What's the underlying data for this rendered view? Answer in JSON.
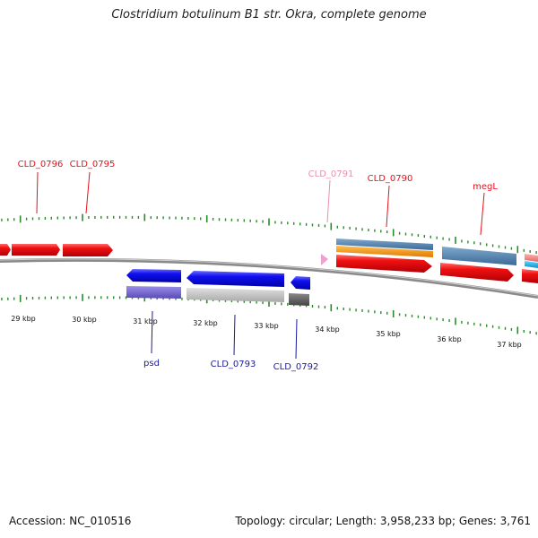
{
  "title": "Clostridium botulinum B1 str. Okra, complete genome",
  "footer": {
    "accession": "Accession: NC_010516",
    "info": "Topology: circular; Length: 3,958,233 bp; Genes: 3,761"
  },
  "colors": {
    "forward_gene": "#e8101a",
    "reverse_gene": "#0a10e8",
    "reverse_gene_label": "#1a1aa0",
    "pseudo_gene_label": "#e98fb0",
    "tick": "#2a8a2a",
    "backbone": "#8a8a8a"
  },
  "kbp_ticks": [
    "29 kbp",
    "30 kbp",
    "31 kbp",
    "32 kbp",
    "33 kbp",
    "34 kbp",
    "35 kbp",
    "36 kbp",
    "37 kbp"
  ],
  "gene_labels": {
    "top": [
      "CLD_0796",
      "CLD_0795",
      "CLD_0791",
      "CLD_0790",
      "megL"
    ],
    "bottom": [
      "psd",
      "CLD_0793",
      "CLD_0792"
    ]
  }
}
